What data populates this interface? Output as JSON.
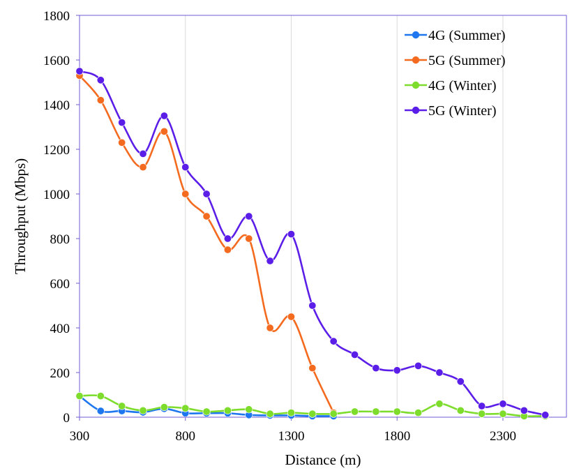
{
  "chart_data": {
    "type": "line",
    "title": "",
    "xlabel": "Distance (m)",
    "ylabel": "Throughput (Mbps)",
    "xlim": [
      300,
      2600
    ],
    "ylim": [
      0,
      1800
    ],
    "xticks": [
      300,
      800,
      1300,
      1800,
      2300
    ],
    "yticks": [
      0,
      200,
      400,
      600,
      800,
      1000,
      1200,
      1400,
      1600,
      1800
    ],
    "grid": "vertical",
    "legend_position": "top-right",
    "series": [
      {
        "name": "4G (Summer)",
        "color": "#1f77f0",
        "x": [
          300,
          400,
          500,
          600,
          700,
          800,
          900,
          1000,
          1100,
          1200,
          1300,
          1400,
          1500
        ],
        "y": [
          95,
          28,
          28,
          22,
          38,
          18,
          18,
          18,
          10,
          8,
          8,
          5,
          5
        ]
      },
      {
        "name": "5G (Summer)",
        "color": "#f46a1e",
        "x": [
          300,
          400,
          500,
          600,
          700,
          800,
          900,
          1000,
          1100,
          1200,
          1300,
          1400,
          1500
        ],
        "y": [
          1530,
          1420,
          1230,
          1120,
          1280,
          1000,
          900,
          750,
          800,
          400,
          450,
          220,
          20
        ]
      },
      {
        "name": "4G (Winter)",
        "color": "#7ddc2c",
        "x": [
          300,
          400,
          500,
          600,
          700,
          800,
          900,
          1000,
          1100,
          1200,
          1300,
          1400,
          1500,
          1600,
          1700,
          1800,
          1900,
          2000,
          2100,
          2200,
          2300,
          2400,
          2500
        ],
        "y": [
          95,
          95,
          50,
          30,
          45,
          40,
          25,
          30,
          35,
          15,
          20,
          15,
          15,
          25,
          25,
          25,
          20,
          60,
          30,
          15,
          15,
          5,
          5
        ]
      },
      {
        "name": "5G (Winter)",
        "color": "#5b1ee8",
        "x": [
          300,
          400,
          500,
          600,
          700,
          800,
          900,
          1000,
          1100,
          1200,
          1300,
          1400,
          1500,
          1600,
          1700,
          1800,
          1900,
          2000,
          2100,
          2200,
          2300,
          2400,
          2500
        ],
        "y": [
          1550,
          1510,
          1320,
          1180,
          1350,
          1120,
          1000,
          800,
          900,
          700,
          820,
          500,
          340,
          280,
          220,
          210,
          230,
          200,
          160,
          50,
          60,
          30,
          10
        ]
      }
    ]
  }
}
